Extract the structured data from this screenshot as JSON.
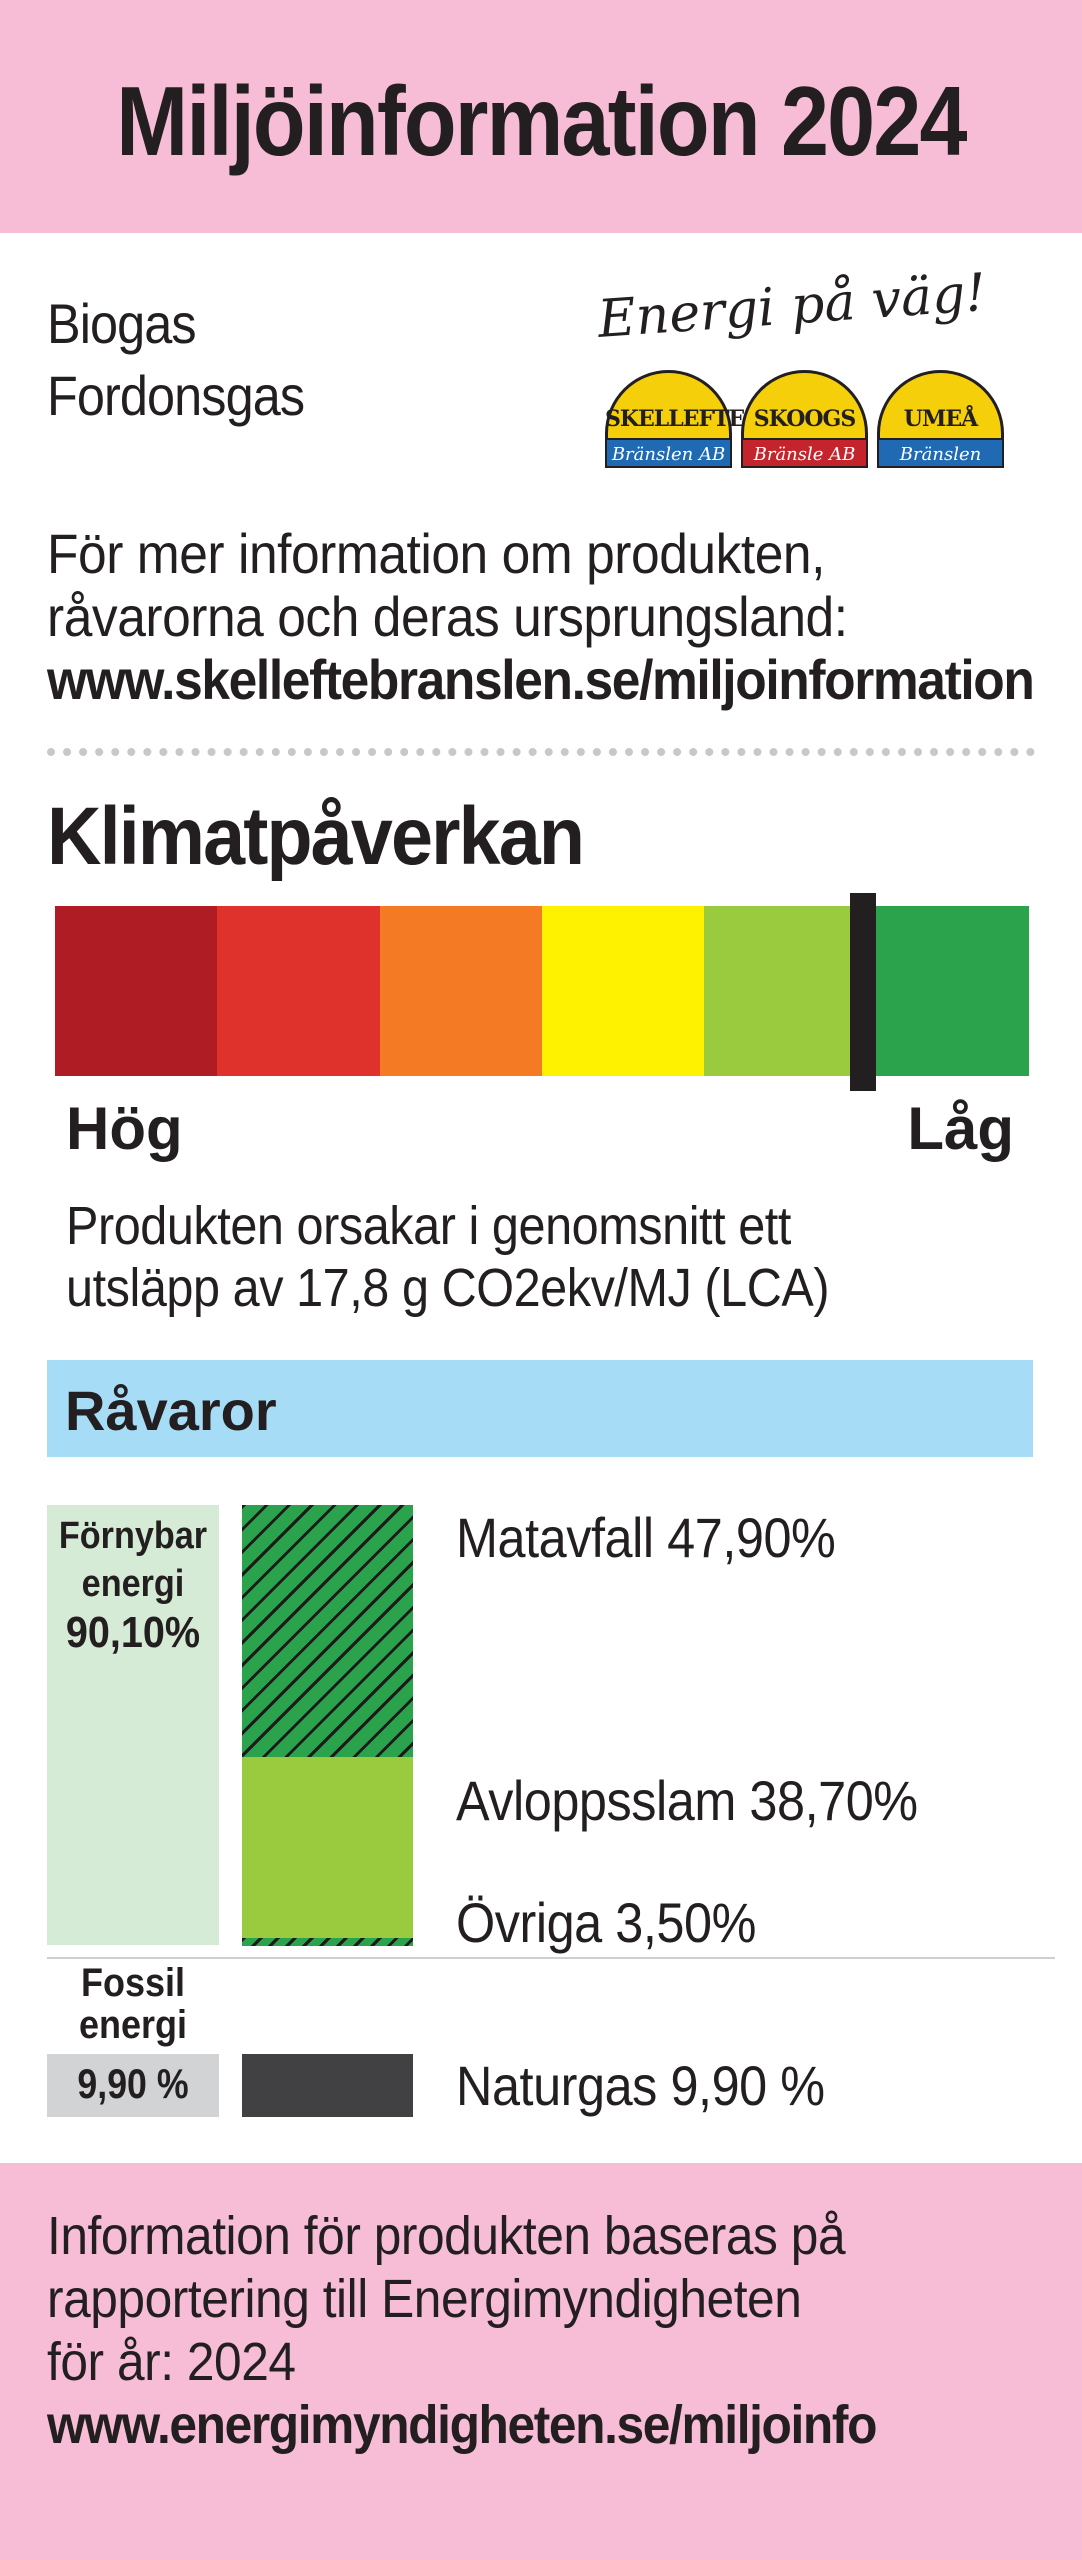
{
  "header": {
    "title": "Miljöinformation 2024"
  },
  "product": {
    "line1": "Biogas",
    "line2": "Fordonsgas"
  },
  "brand": {
    "slogan": "Energi på väg!",
    "logos": [
      {
        "name": "SKELLEFTE",
        "sub": "Bränslen AB",
        "band_color": "#1f6ab3"
      },
      {
        "name": "SKOOGS",
        "sub": "Bränsle AB",
        "band_color": "#c4242b"
      },
      {
        "name": "UMEÅ",
        "sub": "Bränslen",
        "band_color": "#1f6ab3"
      }
    ]
  },
  "info": {
    "line1": "För mer information om produkten,",
    "line2": "råvarorna och deras ursprungsland:",
    "url": "www.skelleftebranslen.se/miljoinformation"
  },
  "klimat": {
    "title": "Klimatpåverkan",
    "scale_colors": [
      "#b01c23",
      "#e0322c",
      "#f47b23",
      "#fff200",
      "#9aca3d",
      "#2ba24c"
    ],
    "marker_fraction": 0.83,
    "high_label": "Hög",
    "low_label": "Låg",
    "desc_line1": "Produkten orsakar i genomsnitt ett",
    "desc_line2": "utsläpp av 17,8 g CO2ekv/MJ (LCA)"
  },
  "ravaror": {
    "title": "Råvaror",
    "renewable": {
      "label_line1": "Förnybar",
      "label_line2": "energi",
      "percent": "90,10%"
    },
    "fossil": {
      "label_line1": "Fossil",
      "label_line2": "energi",
      "percent": "9,90 %"
    },
    "items": {
      "matavfall": "Matavfall 47,90%",
      "avloppsslam": "Avloppsslam 38,70%",
      "ovriga": "Övriga 3,50%",
      "naturgas": "Naturgas 9,90 %"
    }
  },
  "footer": {
    "line1": "Information för produkten baseras på",
    "line2": "rapportering till Energimyndigheten",
    "line3": "för år: 2024",
    "url": "www.energimyndigheten.se/miljoinfo"
  }
}
